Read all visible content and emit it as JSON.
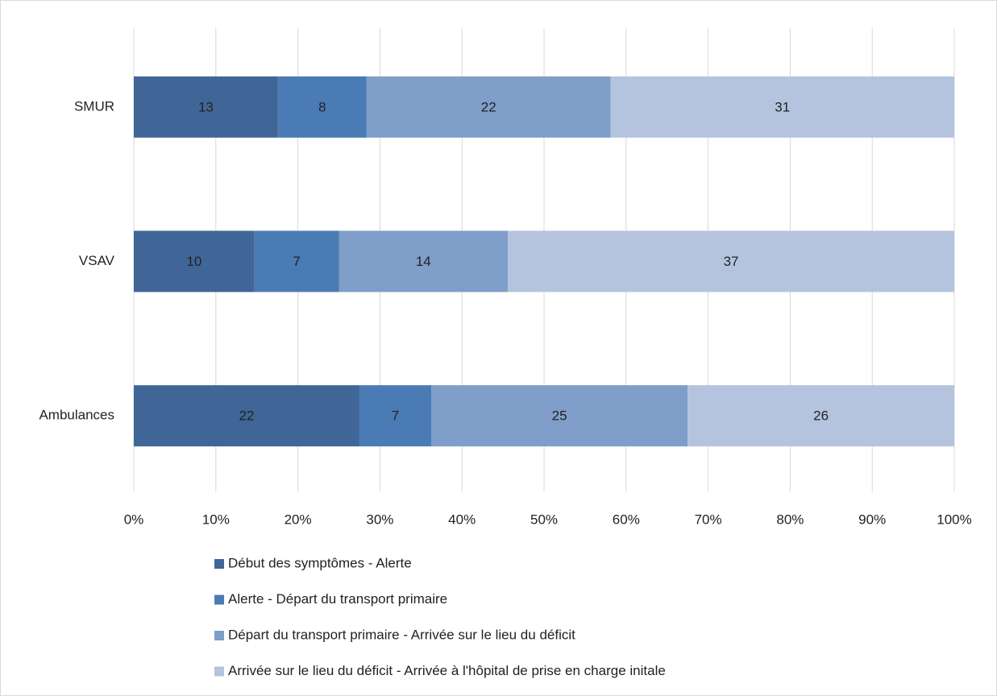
{
  "chart_data": {
    "type": "bar",
    "orientation": "horizontal",
    "stacking": "percent",
    "categories": [
      "SMUR",
      "VSAV",
      "Ambulances"
    ],
    "series": [
      {
        "name": "Début des symptômes - Alerte",
        "color": "#3f6696",
        "values": [
          13,
          10,
          22
        ]
      },
      {
        "name": "Alerte - Départ du transport primaire",
        "color": "#4a7bb5",
        "values": [
          8,
          7,
          7
        ]
      },
      {
        "name": "Départ du transport primaire - Arrivée sur le lieu du déficit",
        "color": "#7f9ec9",
        "values": [
          22,
          14,
          25
        ]
      },
      {
        "name": "Arrivée sur le lieu du déficit - Arrivée à l'hôpital de prise en charge initale",
        "color": "#b4c4df",
        "values": [
          31,
          37,
          26
        ]
      }
    ],
    "xlim": [
      0,
      100
    ],
    "xticks": [
      {
        "value": 0,
        "label": "0%"
      },
      {
        "value": 10,
        "label": "10%"
      },
      {
        "value": 20,
        "label": "20%"
      },
      {
        "value": 30,
        "label": "30%"
      },
      {
        "value": 40,
        "label": "40%"
      },
      {
        "value": 50,
        "label": "50%"
      },
      {
        "value": 60,
        "label": "60%"
      },
      {
        "value": 70,
        "label": "70%"
      },
      {
        "value": 80,
        "label": "80%"
      },
      {
        "value": 90,
        "label": "90%"
      },
      {
        "value": 100,
        "label": "100%"
      }
    ],
    "grid": true,
    "legend": "bottom"
  }
}
